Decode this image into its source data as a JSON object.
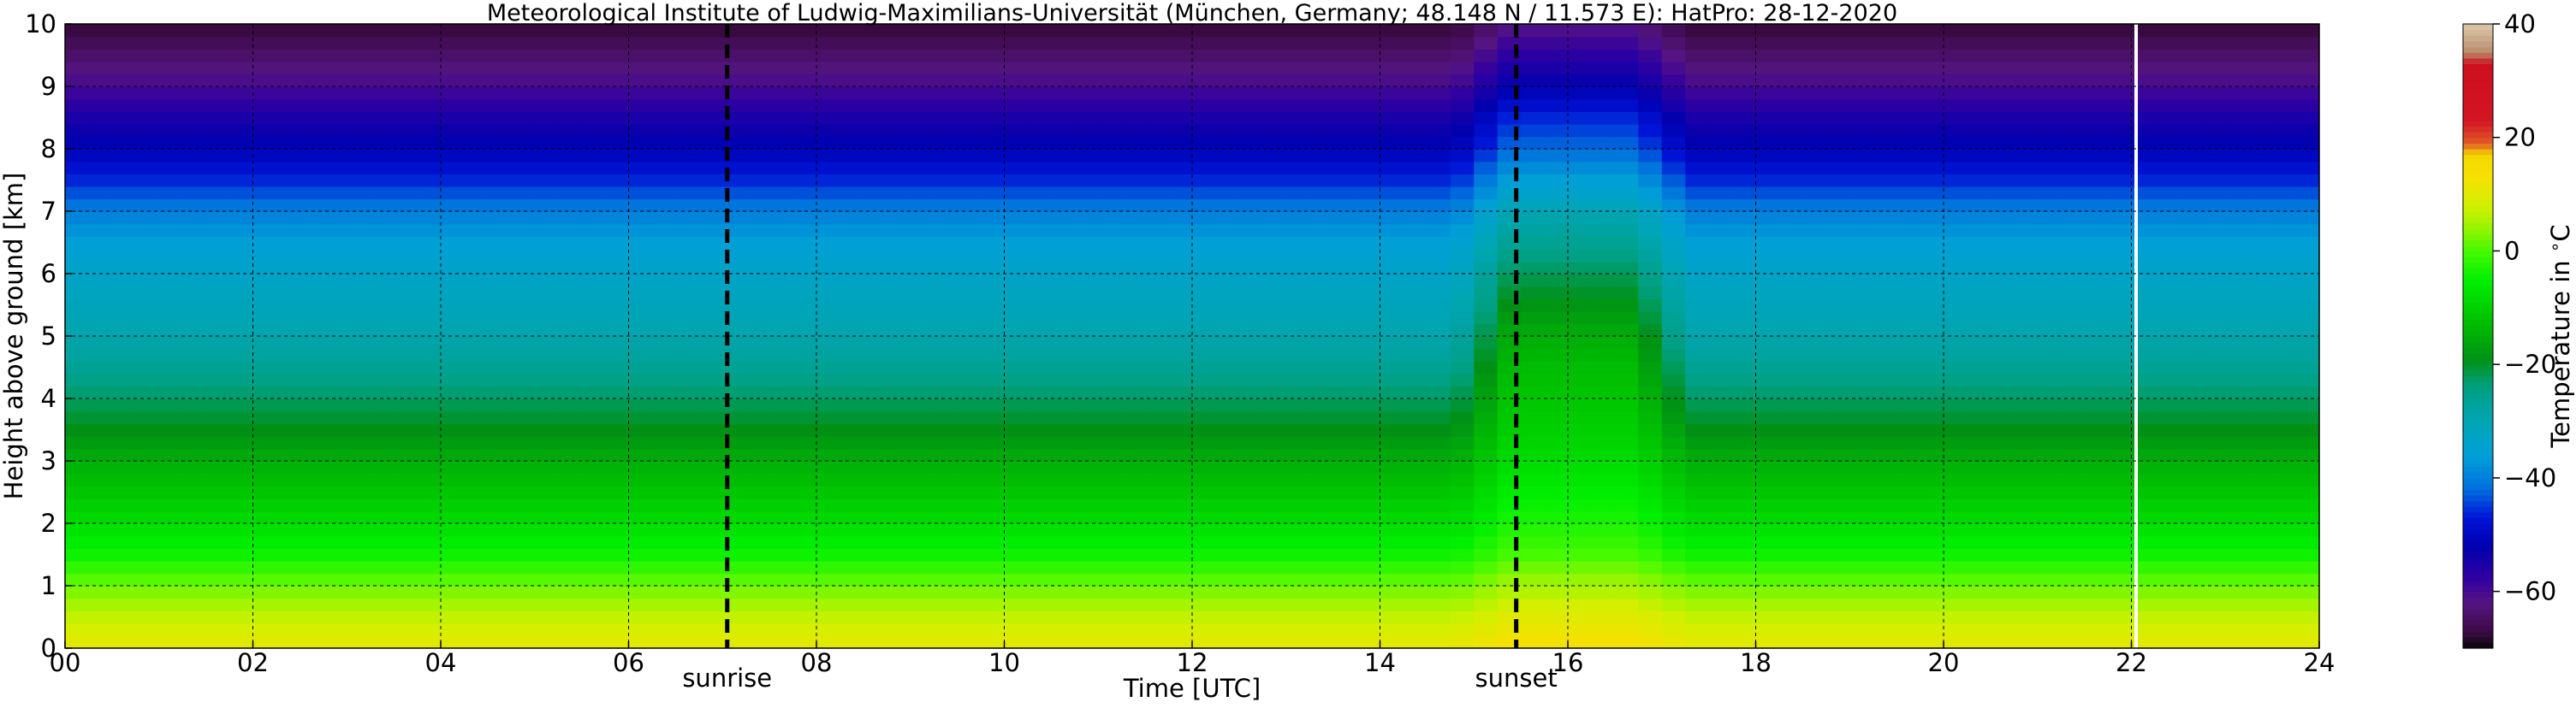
{
  "chart_data": {
    "type": "heatmap",
    "title": "Meteorological Institute of Ludwig-Maximilians-Universität (München, Germany; 48.148 N / 11.573 E):    HatPro: 28-12-2020",
    "xlabel": "Time [UTC]",
    "ylabel": "Height above ground [km]",
    "colorbar_label": "Temperature in $^\\circ$C",
    "xlim": [
      0,
      24
    ],
    "ylim": [
      0,
      10
    ],
    "x_ticks": [
      0,
      2,
      4,
      6,
      8,
      10,
      12,
      14,
      16,
      18,
      20,
      22,
      24
    ],
    "x_tick_labels": [
      "00",
      "02",
      "04",
      "06",
      "08",
      "10",
      "12",
      "14",
      "16",
      "18",
      "20",
      "22",
      "24"
    ],
    "y_ticks": [
      0,
      1,
      2,
      3,
      4,
      5,
      6,
      7,
      8,
      9,
      10
    ],
    "y_tick_labels": [
      "0",
      "1",
      "2",
      "3",
      "4",
      "5",
      "6",
      "7",
      "8",
      "9",
      "10"
    ],
    "grid": true,
    "colorbar": {
      "range": [
        -70,
        40
      ],
      "ticks": [
        40,
        20,
        0,
        -20,
        -40,
        -60
      ],
      "tick_labels": [
        "40",
        "20",
        "0",
        "−20",
        "−40",
        "−60"
      ]
    },
    "annotations": [
      {
        "label": "sunrise",
        "time": 7.05,
        "style": "dashed-vertical"
      },
      {
        "label": "sunset",
        "time": 15.45,
        "style": "dashed-vertical"
      }
    ],
    "data_gap_time": 22.05,
    "temperature_profile": {
      "height_km": [
        0,
        0.5,
        1,
        1.5,
        2,
        3,
        3.5,
        4.5,
        5,
        6,
        6.5,
        7,
        7.5,
        8,
        8.5,
        9,
        10
      ],
      "baseline_celsius": [
        11,
        7,
        2,
        -4,
        -8,
        -15,
        -19,
        -26,
        -29,
        -33,
        -36,
        -40,
        -46,
        -51,
        -55,
        -60,
        -68
      ],
      "warm_event_celsius": [
        14,
        10,
        5,
        0,
        -3,
        -8,
        -10,
        -13,
        -15,
        -22,
        -26,
        -30,
        -36,
        -42,
        -46,
        -52,
        -62
      ],
      "warm_event_window": [
        14.8,
        17.3
      ]
    }
  }
}
